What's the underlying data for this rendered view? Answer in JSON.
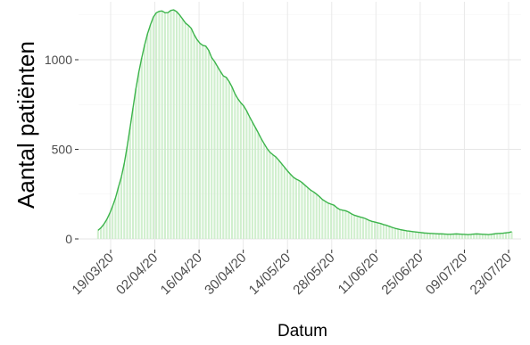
{
  "chart_data": {
    "type": "area",
    "xlabel": "Datum",
    "ylabel": "Aantal patiënten",
    "ylim": [
      0,
      1300
    ],
    "yticks": [
      0,
      500,
      1000
    ],
    "ytick_labels": [
      "0",
      "500",
      "1000"
    ],
    "x_tick_labels": [
      "19/03/20",
      "02/04/20",
      "16/04/20",
      "30/04/20",
      "14/05/20",
      "28/05/20",
      "11/06/20",
      "25/06/20",
      "09/07/20",
      "23/07/20"
    ],
    "x_start": "15/03/20",
    "x_end": "24/07/20",
    "grid": true,
    "series": [
      {
        "color": "#3cb44b",
        "values": [
          48,
          62,
          82,
          108,
          142,
          182,
          228,
          288,
          345,
          420,
          515,
          620,
          730,
          838,
          930,
          1010,
          1082,
          1145,
          1195,
          1238,
          1262,
          1270,
          1272,
          1262,
          1263,
          1275,
          1278,
          1268,
          1250,
          1228,
          1205,
          1192,
          1175,
          1140,
          1112,
          1092,
          1080,
          1076,
          1052,
          1012,
          990,
          962,
          935,
          910,
          902,
          878,
          848,
          810,
          782,
          760,
          742,
          715,
          682,
          652,
          622,
          592,
          560,
          532,
          505,
          484,
          470,
          458,
          440,
          420,
          400,
          380,
          362,
          345,
          334,
          326,
          315,
          300,
          286,
          272,
          262,
          250,
          236,
          220,
          210,
          200,
          194,
          188,
          174,
          164,
          160,
          157,
          150,
          140,
          132,
          127,
          122,
          118,
          112,
          104,
          98,
          94,
          90,
          86,
          80,
          76,
          70,
          64,
          59,
          55,
          51,
          48,
          45,
          43,
          41,
          39,
          37,
          35,
          33,
          32,
          31,
          30,
          29,
          28,
          28,
          27,
          26,
          26,
          27,
          28,
          27,
          26,
          25,
          24,
          25,
          27,
          28,
          27,
          26,
          25,
          24,
          26,
          28,
          30,
          31,
          32,
          34,
          36,
          40
        ]
      }
    ]
  }
}
